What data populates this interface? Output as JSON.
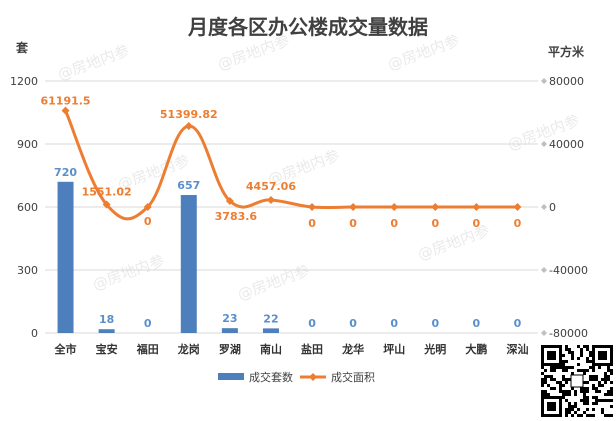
{
  "chart_data": {
    "type": "bar",
    "title": "月度各区办公楼成交量数据",
    "categories": [
      "全市",
      "宝安",
      "福田",
      "龙岗",
      "罗湖",
      "南山",
      "盐田",
      "龙华",
      "坪山",
      "光明",
      "大鹏",
      "深汕"
    ],
    "series": [
      {
        "name": "成交套数",
        "type": "bar",
        "axis": "left",
        "values": [
          720,
          18,
          0,
          657,
          23,
          22,
          0,
          0,
          0,
          0,
          0,
          0
        ],
        "labels": [
          "720",
          "18",
          "0",
          "657",
          "23",
          "22",
          "0",
          "0",
          "0",
          "0",
          "0",
          "0"
        ],
        "color": "#4e7fbd"
      },
      {
        "name": "成交面积",
        "type": "line",
        "axis": "right",
        "values": [
          61191.5,
          1551.02,
          0,
          51399.82,
          3783.6,
          4457.06,
          0,
          0,
          0,
          0,
          0,
          0
        ],
        "labels": [
          "61191.5",
          "1551.02",
          "0",
          "51399.82",
          "3783.6",
          "4457.06",
          "0",
          "0",
          "0",
          "0",
          "0",
          "0"
        ],
        "color": "#ed7d31"
      }
    ],
    "y_left": {
      "unit": "套",
      "ylim": [
        0,
        1200
      ],
      "ticks": [
        "0",
        "300",
        "600",
        "900",
        "1200"
      ],
      "tick_values": [
        0,
        300,
        600,
        900,
        1200
      ]
    },
    "y_right": {
      "unit": "平方米",
      "ylim": [
        -80000,
        80000
      ],
      "ticks": [
        "-80000",
        "-40000",
        "0",
        "40000",
        "80000"
      ],
      "tick_values": [
        -80000,
        -40000,
        0,
        40000,
        80000
      ]
    },
    "grid": true,
    "legend": "bottom"
  },
  "watermark": "@房地内参",
  "colors": {
    "bar": "#4e7fbd",
    "line": "#ed7d31",
    "grid": "#d9d9d9",
    "text": "#404040"
  }
}
